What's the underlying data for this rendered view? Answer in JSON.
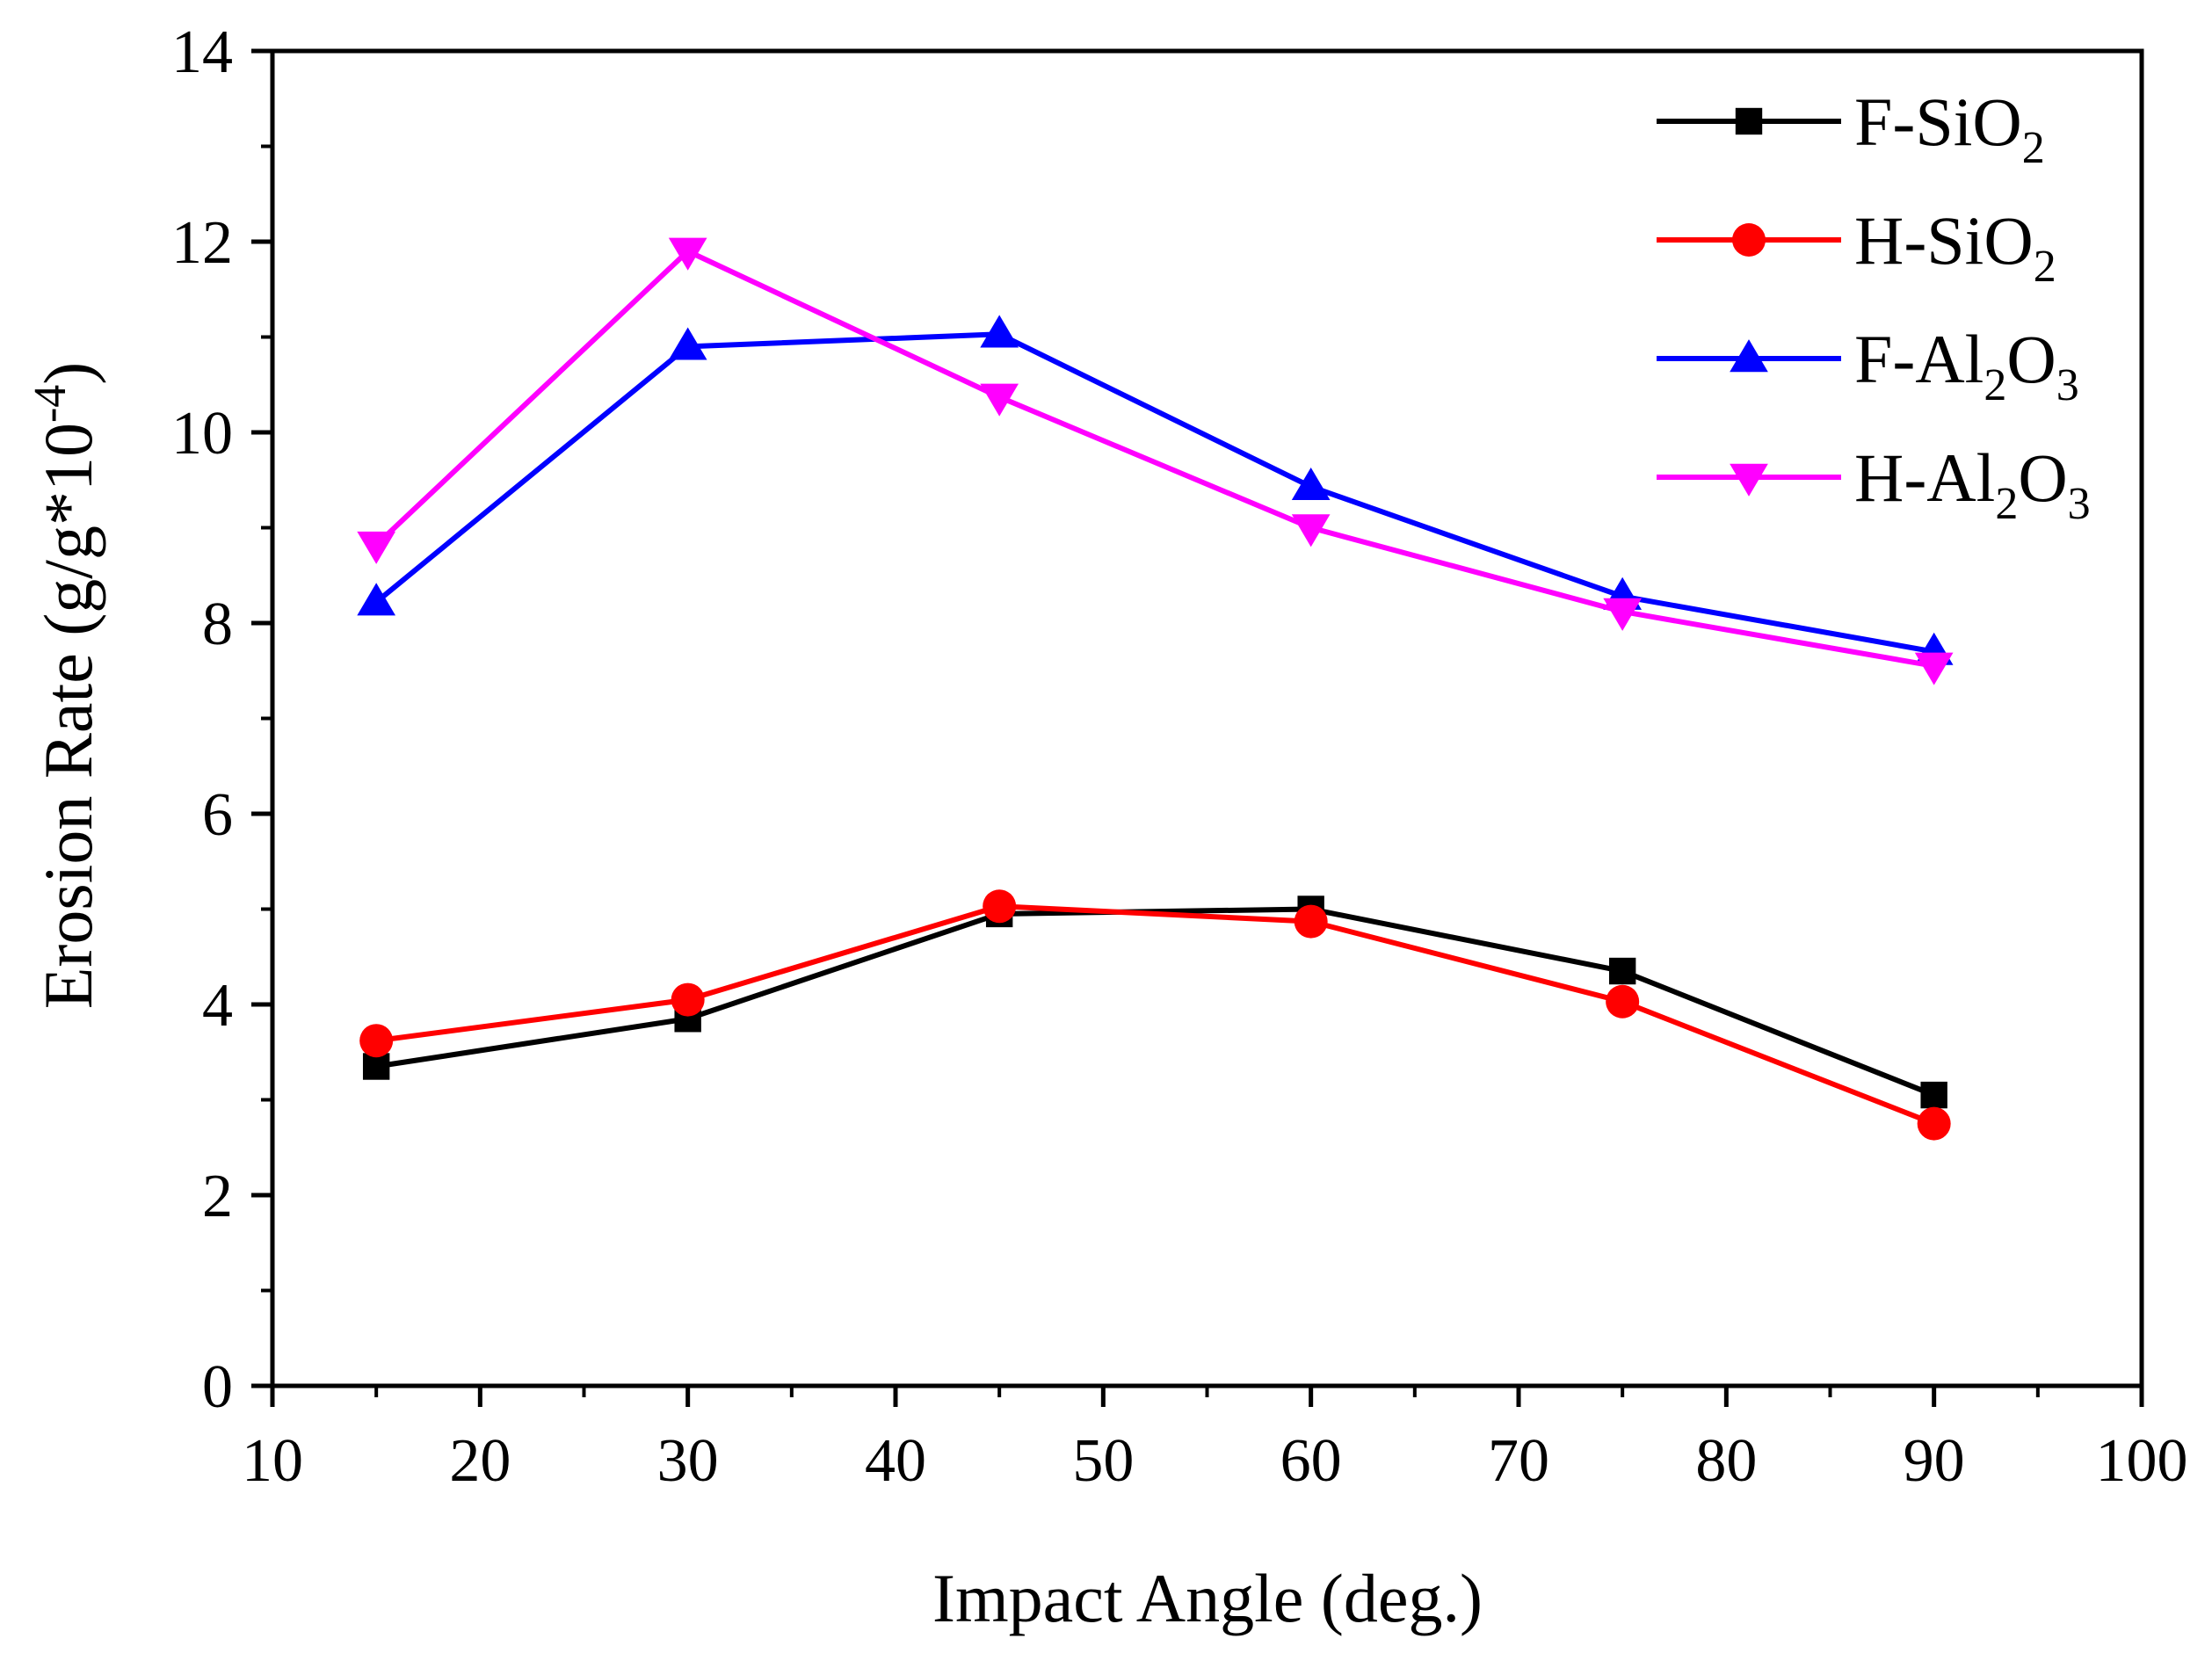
{
  "chart_data": {
    "type": "line",
    "title": "",
    "xlabel": "Impact Angle (deg.)",
    "ylabel_parts": {
      "main": "Erosion Rate (g/g*10",
      "exp": "-4",
      "close": ")"
    },
    "xlim": [
      10,
      100
    ],
    "ylim": [
      0,
      14
    ],
    "xticks": [
      10,
      20,
      30,
      40,
      50,
      60,
      70,
      80,
      90,
      100
    ],
    "yticks": [
      0,
      2,
      4,
      6,
      8,
      10,
      12,
      14
    ],
    "x": [
      15,
      30,
      45,
      60,
      75,
      90
    ],
    "legend_position": "top-right",
    "grid": false,
    "series": [
      {
        "name": "F-SiO2",
        "label_parts": [
          "F-SiO",
          "2",
          ""
        ],
        "color": "#000000",
        "marker": "square",
        "values": [
          3.35,
          3.85,
          4.95,
          5.0,
          4.35,
          3.05
        ]
      },
      {
        "name": "H-SiO2",
        "label_parts": [
          "H-SiO",
          "2",
          ""
        ],
        "color": "#ff0000",
        "marker": "circle",
        "values": [
          3.62,
          4.05,
          5.03,
          4.87,
          4.03,
          2.75
        ]
      },
      {
        "name": "F-Al2O3",
        "label_parts": [
          "F-Al",
          "2",
          "O",
          "3"
        ],
        "color": "#0000ff",
        "marker": "triangle-up",
        "values": [
          8.22,
          10.9,
          11.03,
          9.43,
          8.28,
          7.7
        ]
      },
      {
        "name": "H-Al2O3",
        "label_parts": [
          "H-Al",
          "2",
          "O",
          "3"
        ],
        "color": "#ff00ff",
        "marker": "triangle-down",
        "values": [
          8.82,
          11.9,
          10.37,
          9.0,
          8.12,
          7.55
        ]
      }
    ]
  }
}
